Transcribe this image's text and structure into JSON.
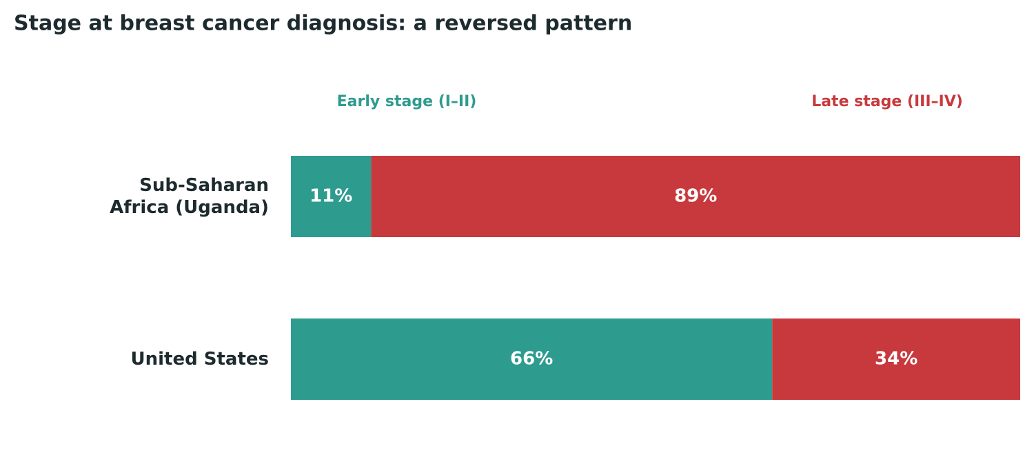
{
  "chart_data": {
    "type": "stacked-bar-horizontal",
    "title": "Stage at breast cancer diagnosis: a reversed pattern",
    "categories": [
      "Sub-Saharan\nAfrica (Uganda)",
      "United States"
    ],
    "series": [
      {
        "name": "Early stage (I–II)",
        "color": "#2e9b8f",
        "values": [
          11,
          66
        ],
        "value_labels": [
          "11%",
          "66%"
        ]
      },
      {
        "name": "Late stage (III–IV)",
        "color": "#c8393d",
        "values": [
          89,
          34
        ],
        "value_labels": [
          "89%",
          "34%"
        ]
      }
    ],
    "xlim": [
      0,
      100
    ]
  }
}
